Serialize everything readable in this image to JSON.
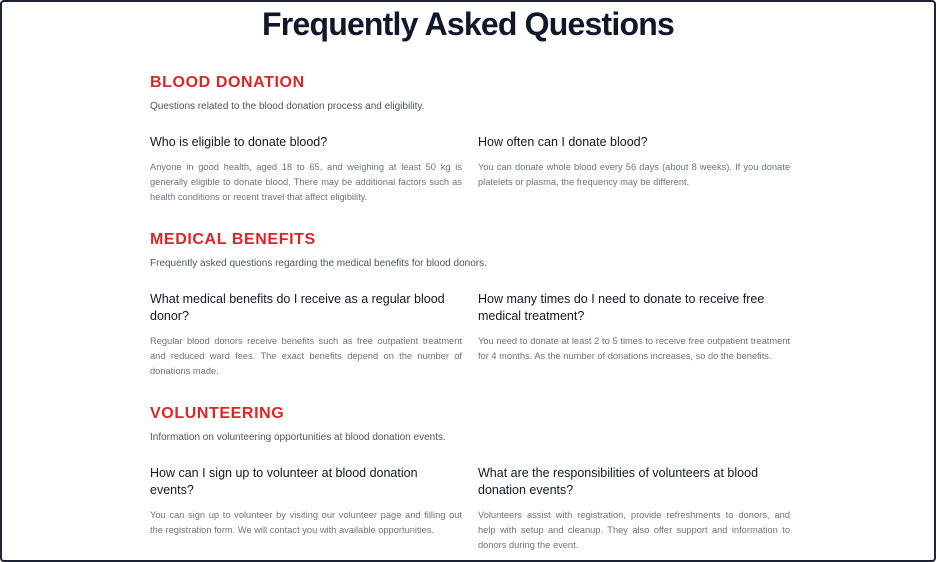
{
  "title": "Frequently Asked Questions",
  "sections": [
    {
      "title": "BLOOD DONATION",
      "description": "Questions related to the blood donation process and eligibility.",
      "faqs": [
        {
          "question": "Who is eligible to donate blood?",
          "answer": "Anyone in good health, aged 18 to 65, and weighing at least 50 kg is generally eligible to donate blood. There may be additional factors such as health conditions or recent travel that affect eligibility."
        },
        {
          "question": "How often can I donate blood?",
          "answer": "You can donate whole blood every 56 days (about 8 weeks). If you donate platelets or plasma, the frequency may be different."
        }
      ]
    },
    {
      "title": "MEDICAL BENEFITS",
      "description": "Frequently asked questions regarding the medical benefits for blood donors.",
      "faqs": [
        {
          "question": "What medical benefits do I receive as a regular blood donor?",
          "answer": "Regular blood donors receive benefits such as free outpatient treatment and reduced ward fees. The exact benefits depend on the number of donations made."
        },
        {
          "question": "How many times do I need to donate to receive free medical treatment?",
          "answer": "You need to donate at least 2 to 5 times to receive free outpatient treatment for 4 months. As the number of donations increases, so do the benefits."
        }
      ]
    },
    {
      "title": "VOLUNTEERING",
      "description": "Information on volunteering opportunities at blood donation events.",
      "faqs": [
        {
          "question": "How can I sign up to volunteer at blood donation events?",
          "answer": "You can sign up to volunteer by visiting our volunteer page and filling out the registration form. We will contact you with available opportunities."
        },
        {
          "question": "What are the responsibilities of volunteers at blood donation events?",
          "answer": "Volunteers assist with registration, provide refreshments to donors, and help with setup and cleanup. They also offer support and information to donors during the event."
        }
      ]
    }
  ],
  "colors": {
    "accent": "#dc2626",
    "title": "#0f1729",
    "border": "#1e2433"
  }
}
